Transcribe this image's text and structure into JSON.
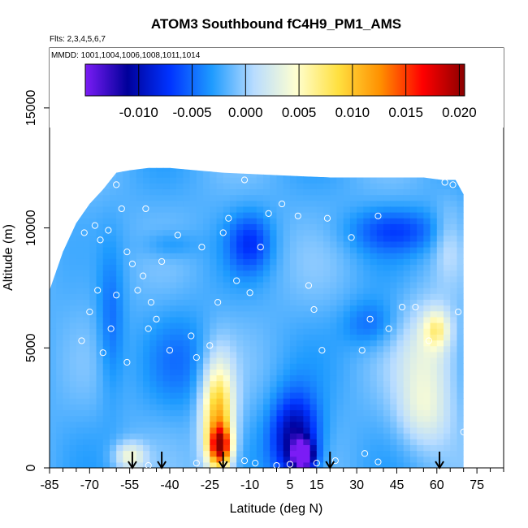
{
  "chart_data": {
    "type": "heatmap",
    "title": "ATOM3 Southbound fC4H9_PM1_AMS",
    "annotations": [
      "Flts: 2,3,4,5,6,7",
      "MMDD: 1001,1004,1006,1008,1011,1014"
    ],
    "xlabel": "Latitude (deg N)",
    "ylabel": "Altitude (m)",
    "xlim": [
      -85,
      85
    ],
    "ylim": [
      0,
      17500
    ],
    "x_ticks": [
      -85,
      -70,
      -55,
      -40,
      -25,
      -10,
      5,
      15,
      30,
      45,
      60,
      75
    ],
    "x_tick_labels": [
      "-85",
      "-70",
      "-55",
      "-40",
      "-25",
      "-10",
      "5",
      "15",
      "30",
      "45",
      "60",
      "75"
    ],
    "y_ticks": [
      0,
      5000,
      10000,
      15000
    ],
    "y_tick_labels": [
      "0",
      "5000",
      "10000",
      "15000"
    ],
    "colorbar": {
      "min": -0.015,
      "max": 0.0205,
      "ticks": [
        -0.01,
        -0.005,
        0.0,
        0.005,
        0.01,
        0.015,
        0.02
      ],
      "tick_labels": [
        "-0.010",
        "-0.005",
        "0.000",
        "0.005",
        "0.010",
        "0.015",
        "0.020"
      ],
      "colors": [
        "#7b1cf5",
        "#00009a",
        "#0033ff",
        "#1e9bff",
        "#b8dcff",
        "#ffffd0",
        "#ffe040",
        "#ff9000",
        "#ff0000",
        "#8b0000"
      ]
    },
    "domain": {
      "x_range": [
        -85,
        70
      ],
      "top_profile": [
        [
          -85,
          7400
        ],
        [
          -80,
          9000
        ],
        [
          -75,
          10200
        ],
        [
          -70,
          11000
        ],
        [
          -65,
          11600
        ],
        [
          -60,
          12300
        ],
        [
          -55,
          12400
        ],
        [
          -48,
          12500
        ],
        [
          -40,
          12500
        ],
        [
          -20,
          12300
        ],
        [
          0,
          12200
        ],
        [
          20,
          12100
        ],
        [
          40,
          12100
        ],
        [
          55,
          12100
        ],
        [
          62,
          12000
        ],
        [
          67,
          12000
        ],
        [
          70,
          11400
        ]
      ],
      "bottom": 0
    },
    "background_value": -0.0018,
    "field_features": [
      {
        "x": -22,
        "y": 2100,
        "rx": 6,
        "ry": 2300,
        "value": 0.011
      },
      {
        "x": -21,
        "y": 900,
        "rx": 4,
        "ry": 800,
        "value": 0.013
      },
      {
        "x": 7,
        "y": 1200,
        "rx": 9,
        "ry": 1800,
        "value": -0.012
      },
      {
        "x": 10,
        "y": 500,
        "rx": 4,
        "ry": 600,
        "value": -0.014
      },
      {
        "x": -55,
        "y": 500,
        "rx": 6,
        "ry": 600,
        "value": 0.004
      },
      {
        "x": 57,
        "y": 4500,
        "rx": 12,
        "ry": 2500,
        "value": 0.003
      },
      {
        "x": 60,
        "y": 5800,
        "rx": 5,
        "ry": 800,
        "value": 0.004
      },
      {
        "x": 55,
        "y": 2200,
        "rx": 10,
        "ry": 1500,
        "value": 0.0015
      },
      {
        "x": -10,
        "y": 9400,
        "rx": 8,
        "ry": 1200,
        "value": -0.0065
      },
      {
        "x": 45,
        "y": 9900,
        "rx": 18,
        "ry": 900,
        "value": -0.006
      },
      {
        "x": -40,
        "y": 9300,
        "rx": 10,
        "ry": 600,
        "value": -0.004
      },
      {
        "x": -62,
        "y": 6000,
        "rx": 5,
        "ry": 3000,
        "value": -0.005
      },
      {
        "x": -70,
        "y": 8500,
        "rx": 10,
        "ry": 2000,
        "value": -0.001
      },
      {
        "x": 35,
        "y": 6000,
        "rx": 10,
        "ry": 1000,
        "value": -0.005
      },
      {
        "x": -35,
        "y": 4500,
        "rx": 12,
        "ry": 2000,
        "value": -0.004
      },
      {
        "x": 15,
        "y": 8000,
        "rx": 15,
        "ry": 2000,
        "value": -0.0015
      },
      {
        "x": 64,
        "y": 9500,
        "rx": 5,
        "ry": 1500,
        "value": 0.0005
      }
    ],
    "observations": [
      [
        -72,
        9800
      ],
      [
        -68,
        10100
      ],
      [
        -66,
        9500
      ],
      [
        -63,
        9900
      ],
      [
        -60,
        11800
      ],
      [
        -58,
        10800
      ],
      [
        -56,
        9000
      ],
      [
        -54,
        8500
      ],
      [
        -52,
        7400
      ],
      [
        -49,
        10800
      ],
      [
        -47,
        6900
      ],
      [
        -45,
        6200
      ],
      [
        -43,
        8600
      ],
      [
        -40,
        4900
      ],
      [
        -37,
        9700
      ],
      [
        -32,
        5500
      ],
      [
        -30,
        4600
      ],
      [
        -28,
        9200
      ],
      [
        -25,
        5100
      ],
      [
        -22,
        6900
      ],
      [
        -20,
        9800
      ],
      [
        -18,
        10400
      ],
      [
        -15,
        7800
      ],
      [
        -12,
        12000
      ],
      [
        -10,
        7300
      ],
      [
        -6,
        9200
      ],
      [
        -3,
        10600
      ],
      [
        2,
        11000
      ],
      [
        8,
        10500
      ],
      [
        12,
        7600
      ],
      [
        14,
        6600
      ],
      [
        17,
        4900
      ],
      [
        19,
        10400
      ],
      [
        23,
        12300
      ],
      [
        28,
        9600
      ],
      [
        32,
        4900
      ],
      [
        35,
        6200
      ],
      [
        38,
        10500
      ],
      [
        42,
        5800
      ],
      [
        47,
        6700
      ],
      [
        52,
        6700
      ],
      [
        57,
        5300
      ],
      [
        63,
        11900
      ],
      [
        66,
        11800
      ],
      [
        68,
        6500
      ],
      [
        70,
        1500
      ],
      [
        -70,
        6500
      ],
      [
        -73,
        5300
      ],
      [
        -65,
        4800
      ],
      [
        -67,
        7400
      ],
      [
        -62,
        5800
      ],
      [
        -56,
        4400
      ],
      [
        -60,
        7200
      ],
      [
        -48,
        5800
      ],
      [
        -50,
        8000
      ],
      [
        0,
        100
      ],
      [
        -8,
        200
      ],
      [
        15,
        200
      ],
      [
        38,
        250
      ],
      [
        -30,
        200
      ],
      [
        -20,
        150
      ],
      [
        -48,
        100
      ],
      [
        33,
        600
      ],
      [
        22,
        300
      ],
      [
        -12,
        300
      ],
      [
        5,
        150
      ]
    ],
    "flight_markers": [
      -54,
      -43,
      -20,
      20,
      61
    ]
  }
}
